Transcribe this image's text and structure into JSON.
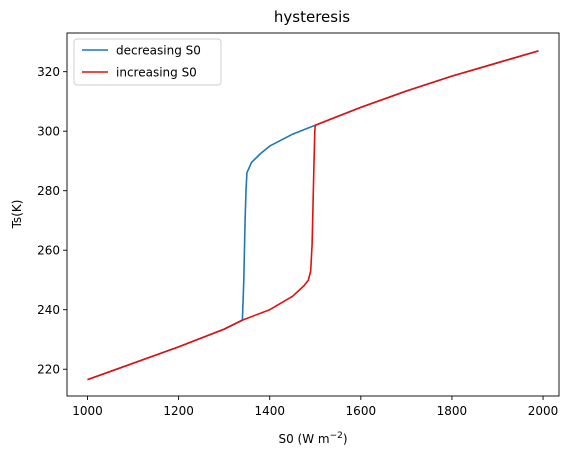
{
  "chart_data": {
    "type": "line",
    "title": "hysteresis",
    "xlabel_main": "S0 (W m",
    "xlabel_exp": "−2",
    "xlabel_close": ")",
    "ylabel": "Ts(K)",
    "xlim": [
      955,
      2035
    ],
    "ylim": [
      211,
      333
    ],
    "xticks": [
      1000,
      1200,
      1400,
      1600,
      1800,
      2000
    ],
    "yticks": [
      220,
      240,
      260,
      280,
      300,
      320
    ],
    "grid": false,
    "legend_position": "top-left",
    "series": [
      {
        "name": "decreasing S0",
        "color": "#1f77b4",
        "x": [
          1990,
          1900,
          1800,
          1700,
          1600,
          1550,
          1500,
          1450,
          1400,
          1380,
          1360,
          1350,
          1348,
          1346,
          1343,
          1340,
          1300,
          1200,
          1100,
          1000
        ],
        "y": [
          327,
          323,
          318.5,
          313.5,
          308,
          305,
          302,
          299,
          295,
          292.5,
          289.5,
          286,
          280,
          270,
          250,
          236.5,
          233.5,
          227.5,
          222,
          216.5
        ]
      },
      {
        "name": "increasing S0",
        "color": "#e0110e",
        "x": [
          1000,
          1100,
          1200,
          1300,
          1340,
          1400,
          1450,
          1475,
          1485,
          1490,
          1493,
          1495,
          1497,
          1499,
          1500,
          1550,
          1600,
          1700,
          1800,
          1900,
          1990
        ],
        "y": [
          216.5,
          222,
          227.5,
          233.5,
          236.5,
          240,
          244.5,
          248,
          250,
          253,
          262,
          275,
          288,
          300,
          302,
          305,
          308,
          313.5,
          318.5,
          323,
          327
        ]
      }
    ]
  }
}
